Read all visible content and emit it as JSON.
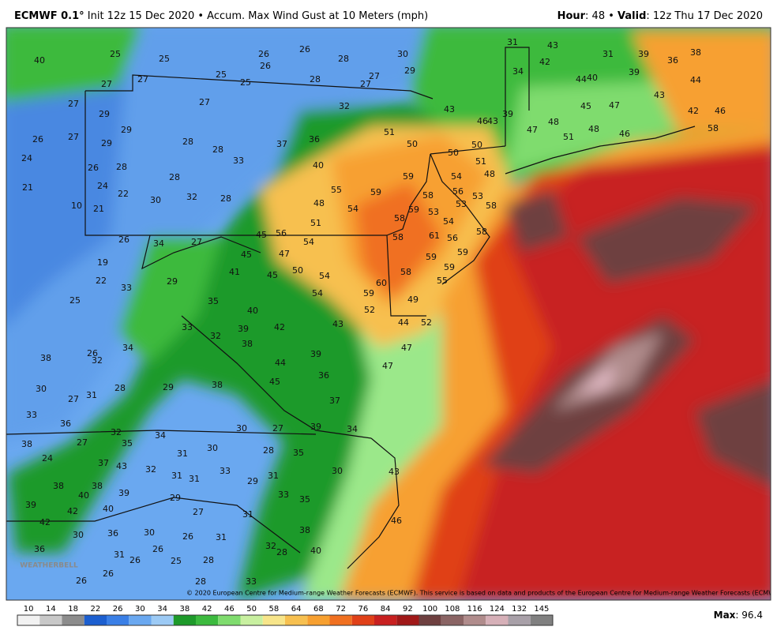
{
  "header": {
    "model": "ECMWF 0.1°",
    "description": "Init 12z 15 Dec 2020 • Accum. Max Wind Gust at 10 Meters (mph)",
    "hour_label": "Hour",
    "hour_value": ": 48 • ",
    "valid_label": "Valid",
    "valid_value": ": 12z Thu 17 Dec 2020"
  },
  "map": {
    "logo": "WEATHERBELL",
    "credit": "© 2020 European Centre for Medium-range Weather Forecasts (ECMWF). This service is based on data and products of the European Centre for Medium-range Weather Forecasts (ECMWF).",
    "labels": [
      40,
      25,
      25,
      27,
      27,
      25,
      25,
      26,
      26,
      26,
      28,
      28,
      27,
      27,
      30,
      29,
      31,
      43,
      42,
      34,
      31,
      39,
      36,
      38,
      44,
      40,
      44,
      39,
      27,
      29,
      27,
      32,
      43,
      46,
      43,
      39,
      45,
      47,
      43,
      42,
      46,
      58,
      26,
      27,
      29,
      29,
      28,
      28,
      33,
      37,
      36,
      51,
      50,
      50,
      50,
      51,
      48,
      47,
      48,
      51,
      46,
      24,
      26,
      28,
      28,
      40,
      55,
      59,
      59,
      54,
      48,
      21,
      10,
      21,
      24,
      22,
      30,
      32,
      28,
      48,
      54,
      58,
      58,
      56,
      53,
      53,
      58,
      59,
      53,
      54,
      51,
      45,
      56,
      54,
      61,
      56,
      58,
      26,
      34,
      27,
      45,
      47,
      58,
      59,
      59,
      19,
      22,
      33,
      29,
      41,
      45,
      50,
      54,
      60,
      58,
      59,
      55,
      25,
      35,
      40,
      54,
      59,
      49,
      52,
      33,
      39,
      42,
      43,
      44,
      52,
      32,
      38,
      47,
      38,
      26,
      32,
      34,
      44,
      39,
      47,
      30,
      27,
      31,
      28,
      29,
      38,
      45,
      36,
      37,
      33,
      36,
      32,
      34,
      30,
      27,
      39,
      34,
      38,
      27,
      35,
      30,
      31,
      28,
      35,
      24,
      37,
      43,
      32,
      31,
      31,
      33,
      29,
      31,
      30,
      43,
      38,
      38,
      39,
      33,
      35,
      29,
      40,
      39,
      42,
      40,
      27,
      31,
      42,
      30,
      36,
      30,
      26,
      31,
      38,
      36,
      31,
      26,
      26,
      25,
      28,
      32,
      28,
      40,
      46,
      26,
      26,
      28,
      33
    ]
  },
  "legend": {
    "ticks": [
      10,
      14,
      18,
      22,
      26,
      30,
      34,
      38,
      42,
      46,
      50,
      58,
      64,
      68,
      72,
      76,
      84,
      92,
      100,
      108,
      116,
      124,
      132,
      145
    ],
    "colors": [
      "#f2f2f2",
      "#c8c8c8",
      "#8c8c8c",
      "#1c5fd0",
      "#3a7fe6",
      "#6aa8f0",
      "#9ccaf5",
      "#1e9a2a",
      "#3cba3e",
      "#7fdc6e",
      "#c8f0a0",
      "#f7e58a",
      "#f7c050",
      "#f7a030",
      "#f07020",
      "#e04018",
      "#c82020",
      "#a01818",
      "#6e4040",
      "#8a6464",
      "#b08c8c",
      "#d6b0b8",
      "#a8a0a8",
      "#808080"
    ]
  },
  "footer": {
    "max_label": "Max",
    "max_value": ": 96.4"
  }
}
